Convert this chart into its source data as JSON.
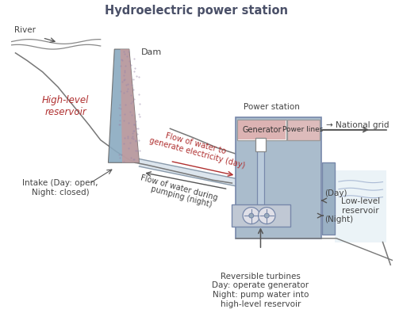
{
  "title": "Hydroelectric power station",
  "title_color": "#4a5068",
  "title_fontsize": 10.5,
  "bg_color": "#ffffff",
  "dam_color_blue": "#8aaac0",
  "dam_color_pink": "#c89898",
  "reservoir_label": "High-level\nreservoir",
  "reservoir_label_color": "#b03030",
  "river_label": "River",
  "dam_label": "Dam",
  "intake_label": "Intake (Day: open,\nNight: closed)",
  "flow_day_label1": "Flow of water to",
  "flow_day_label2": "generate electricity (day)",
  "flow_night_label1": "Flow of water during",
  "flow_night_label2": "pumping (night)",
  "power_station_label": "Power station",
  "generator_label": "Generator",
  "power_lines_label": "Power lines",
  "arrow_label": "→",
  "national_grid_label": "National grid",
  "day_label": "(Day)",
  "night_label": "(Night)",
  "low_reservoir_label": "Low-level\nreservoir",
  "turbines_label": "Reversible turbines\nDay: operate generator\nNight: pump water into\nhigh-level reservoir",
  "label_color": "#444444",
  "red_label_color": "#b03030",
  "arrow_color_red": "#b03030",
  "structure_color": "#9ab0c8",
  "generator_box_color": "#d4a0a0",
  "power_station_box_color": "#aabccc",
  "dark_arrow_color": "#555555",
  "pipe_color": "#aabbcc",
  "wall_color": "#8899aa"
}
